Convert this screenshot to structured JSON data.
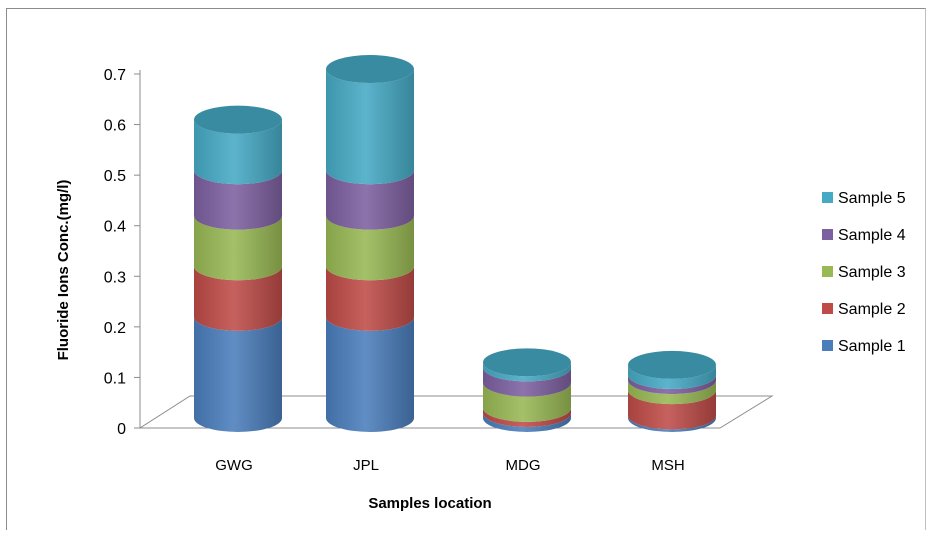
{
  "chart_data": {
    "type": "bar",
    "subtype": "stacked-3d-cylinder",
    "title": "",
    "xlabel": "Samples  location",
    "ylabel": "Fluoride Ions Conc.(mg/l)",
    "ylim": [
      0,
      0.7
    ],
    "yticks": [
      "0",
      "0.1",
      "0.2",
      "0.3",
      "0.4",
      "0.5",
      "0.6",
      "0.7"
    ],
    "categories": [
      "GWG",
      "JPL",
      "MDG",
      "MSH"
    ],
    "series": [
      {
        "name": "Sample 1",
        "color": "#4a7ebb",
        "values": [
          0.2,
          0.2,
          0.01,
          0.005
        ]
      },
      {
        "name": "Sample 2",
        "color": "#be4b48",
        "values": [
          0.1,
          0.1,
          0.01,
          0.05
        ]
      },
      {
        "name": "Sample 3",
        "color": "#98b954",
        "values": [
          0.1,
          0.1,
          0.05,
          0.02
        ]
      },
      {
        "name": "Sample 4",
        "color": "#7d60a0",
        "values": [
          0.09,
          0.09,
          0.03,
          0.01
        ]
      },
      {
        "name": "Sample 5",
        "color": "#46aac5",
        "values": [
          0.1,
          0.2,
          0.01,
          0.02
        ]
      }
    ],
    "legend_position": "right",
    "grid": false
  }
}
